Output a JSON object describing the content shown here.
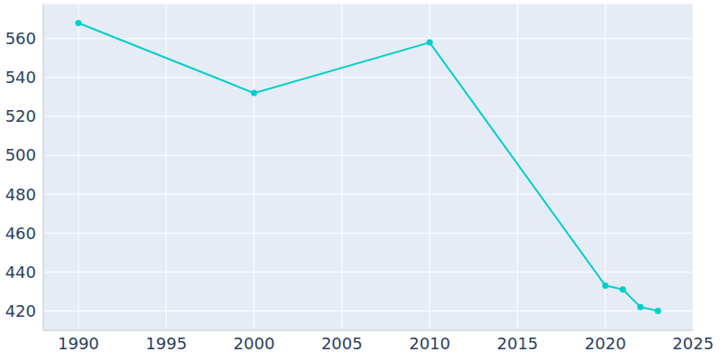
{
  "chart_data": {
    "type": "line",
    "x": [
      1990,
      2000,
      2010,
      2020,
      2021,
      2022,
      2023
    ],
    "values": [
      568,
      532,
      558,
      433,
      431,
      422,
      420
    ],
    "color": "#00cfc8",
    "marker": "circle",
    "xlim": [
      1988,
      2025
    ],
    "xticks": [
      1990,
      1995,
      2000,
      2005,
      2010,
      2015,
      2020,
      2025
    ],
    "ylim": [
      410,
      578
    ],
    "yticks": [
      420,
      440,
      460,
      480,
      500,
      520,
      540,
      560
    ],
    "grid": true
  }
}
